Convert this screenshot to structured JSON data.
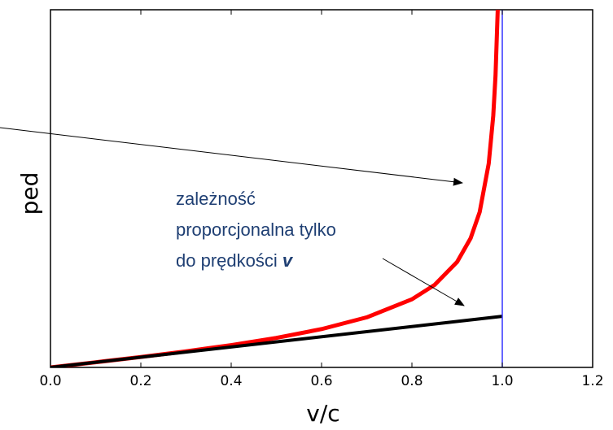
{
  "chart_data": {
    "type": "line",
    "xlabel": "v/c",
    "ylabel": "ped",
    "xlim": [
      0,
      1.2
    ],
    "ylim": [
      0,
      7
    ],
    "xticks": [
      {
        "value": 0,
        "label": "0.0"
      },
      0.2,
      0.4,
      0.6,
      0.8,
      {
        "value": 1,
        "label": "1.0"
      },
      1.2
    ],
    "vline": {
      "x": 1,
      "color": "#3333ff"
    },
    "series": [
      {
        "color": "#ff0000",
        "x": [
          0,
          0.1,
          0.2,
          0.3,
          0.4,
          0.5,
          0.6,
          0.7,
          0.8,
          0.85,
          0.9,
          0.93,
          0.95,
          0.97,
          0.98,
          0.985,
          0.99
        ],
        "values": [
          0,
          0.1005,
          0.2041,
          0.3145,
          0.4364,
          0.5774,
          0.75,
          0.9802,
          1.3333,
          1.6136,
          2.0647,
          2.5303,
          3.0424,
          3.99,
          4.9247,
          5.7066,
          7.0179
        ]
      },
      {
        "color": "#000000",
        "x": [
          0,
          1
        ],
        "values": [
          0,
          1
        ]
      }
    ],
    "annotation": {
      "lines": [
        "zależność",
        "proporcjonalna tylko",
        "do prędkości "
      ],
      "emphasis": "v"
    }
  }
}
